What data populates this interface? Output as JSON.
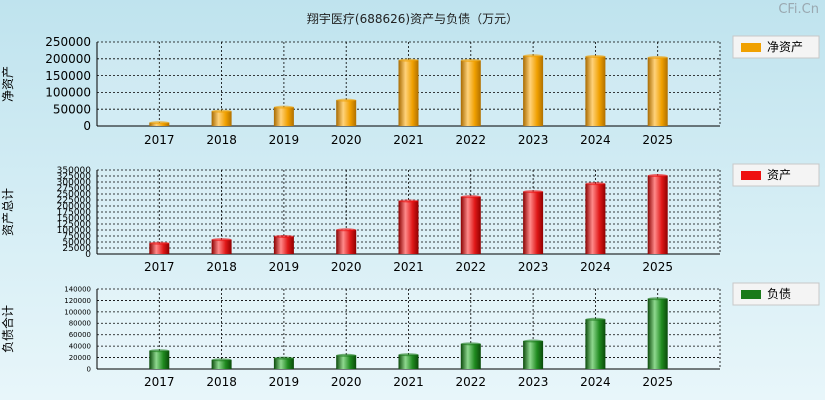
{
  "title": "翔宇医疗(688626)资产与负债（万元）",
  "watermark": "CFi.Cn",
  "chart_data": [
    {
      "type": "bar",
      "ylabel": "净资产",
      "legend": "净资产",
      "color": "#f0a000",
      "categories": [
        "2017",
        "2018",
        "2019",
        "2020",
        "2021",
        "2022",
        "2023",
        "2024",
        "2025"
      ],
      "values": [
        10000,
        44000,
        56000,
        77000,
        196000,
        195000,
        209000,
        207000,
        204000
      ],
      "ylim": [
        0,
        250000
      ],
      "yticks": [
        0,
        50000,
        100000,
        150000,
        200000,
        250000
      ]
    },
    {
      "type": "bar",
      "ylabel": "资产总计",
      "legend": "资产",
      "color": "#ee1111",
      "categories": [
        "2017",
        "2018",
        "2019",
        "2020",
        "2021",
        "2022",
        "2023",
        "2024",
        "2025"
      ],
      "values": [
        45000,
        60000,
        73000,
        101000,
        221000,
        239000,
        260000,
        293000,
        327000
      ],
      "ylim": [
        0,
        350000
      ],
      "yticks": [
        0,
        25000,
        50000,
        75000,
        100000,
        125000,
        150000,
        175000,
        200000,
        225000,
        250000,
        275000,
        300000,
        325000,
        350000
      ]
    },
    {
      "type": "bar",
      "ylabel": "负债合计",
      "legend": "负债",
      "color": "#1a7a1a",
      "categories": [
        "2017",
        "2018",
        "2019",
        "2020",
        "2021",
        "2022",
        "2023",
        "2024",
        "2025"
      ],
      "values": [
        32000,
        16000,
        19000,
        24000,
        25000,
        44000,
        49000,
        87000,
        123000
      ],
      "ylim": [
        0,
        140000
      ],
      "yticks": [
        0,
        20000,
        40000,
        60000,
        80000,
        100000,
        120000,
        140000
      ]
    }
  ]
}
